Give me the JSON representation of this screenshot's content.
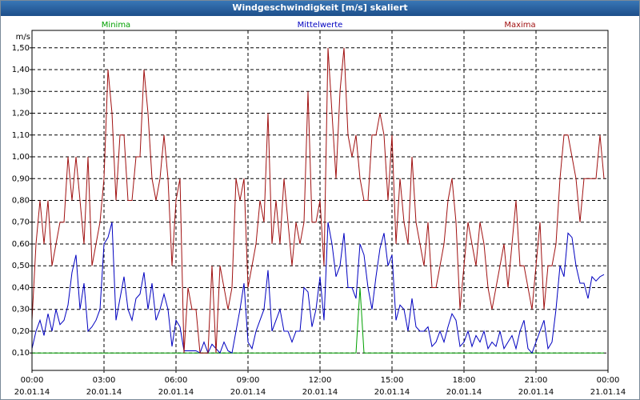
{
  "chart_data": {
    "type": "line",
    "title": "Windgeschwindigkeit [m/s] skaliert",
    "y_unit": "m/s",
    "x": [
      0,
      10,
      20,
      30,
      40,
      50,
      60,
      70,
      80,
      90,
      100,
      110,
      120,
      130,
      140,
      150,
      160,
      170,
      180,
      190,
      200,
      210,
      220,
      230,
      240,
      250,
      260,
      270,
      280,
      290,
      300,
      310,
      320,
      330,
      340,
      350,
      360,
      370,
      380,
      390,
      400,
      410,
      420,
      430,
      440,
      450,
      460,
      470,
      480,
      490,
      500,
      510,
      520,
      530,
      540,
      550,
      560,
      570,
      580,
      590,
      600,
      610,
      620,
      630,
      640,
      650,
      660,
      670,
      680,
      690,
      700,
      710,
      720,
      730,
      740,
      750,
      760,
      770,
      780,
      790,
      800,
      810,
      820,
      830,
      840,
      850,
      860,
      870,
      880,
      890,
      900,
      910,
      920,
      930,
      940,
      950,
      960,
      970,
      980,
      990,
      1000,
      1010,
      1020,
      1030,
      1040,
      1050,
      1060,
      1070,
      1080,
      1090,
      1100,
      1110,
      1120,
      1130,
      1140,
      1150,
      1160,
      1170,
      1180,
      1190,
      1200,
      1210,
      1220,
      1230,
      1240,
      1250,
      1260,
      1270,
      1280,
      1290,
      1300,
      1310,
      1320,
      1330,
      1340,
      1350,
      1360,
      1370,
      1380,
      1390,
      1400,
      1410,
      1420,
      1430
    ],
    "series": [
      {
        "name": "Minima",
        "color": "#00a000",
        "values": [
          0.1,
          0.1,
          0.1,
          0.1,
          0.1,
          0.1,
          0.1,
          0.1,
          0.1,
          0.1,
          0.1,
          0.1,
          0.1,
          0.1,
          0.1,
          0.1,
          0.1,
          0.1,
          0.1,
          0.1,
          0.1,
          0.1,
          0.1,
          0.1,
          0.1,
          0.1,
          0.1,
          0.1,
          0.1,
          0.1,
          0.1,
          0.1,
          0.1,
          0.1,
          0.1,
          0.1,
          0.1,
          0.1,
          0.1,
          0.1,
          0.1,
          0.1,
          0.1,
          0.1,
          0.1,
          0.1,
          0.1,
          0.1,
          0.1,
          0.1,
          0.1,
          0.1,
          0.1,
          0.1,
          0.1,
          0.1,
          0.1,
          0.1,
          0.1,
          0.1,
          0.1,
          0.1,
          0.1,
          0.1,
          0.1,
          0.1,
          0.1,
          0.1,
          0.1,
          0.1,
          0.1,
          0.1,
          0.1,
          0.1,
          0.1,
          0.1,
          0.1,
          0.1,
          0.1,
          0.1,
          0.1,
          0.1,
          0.4,
          0.1,
          0.1,
          0.1,
          0.1,
          0.1,
          0.1,
          0.1,
          0.1,
          0.1,
          0.1,
          0.1,
          0.1,
          0.1,
          0.1,
          0.1,
          0.1,
          0.1,
          0.1,
          0.1,
          0.1,
          0.1,
          0.1,
          0.1,
          0.1,
          0.1,
          0.1,
          0.1,
          0.1,
          0.1,
          0.1,
          0.1,
          0.1,
          0.1,
          0.1,
          0.1,
          0.1,
          0.1,
          0.1,
          0.1,
          0.1,
          0.1,
          0.1,
          0.1,
          0.1,
          0.1,
          0.1,
          0.1,
          0.1,
          0.1,
          0.1,
          0.1,
          0.1,
          0.1,
          0.1,
          0.1,
          0.1,
          0.1,
          0.1,
          0.1,
          0.1,
          0.1
        ]
      },
      {
        "name": "Mittelwerte",
        "color": "#0000c0",
        "values": [
          0.12,
          0.2,
          0.25,
          0.18,
          0.28,
          0.2,
          0.3,
          0.23,
          0.25,
          0.32,
          0.47,
          0.55,
          0.3,
          0.42,
          0.2,
          0.22,
          0.25,
          0.3,
          0.6,
          0.63,
          0.7,
          0.25,
          0.35,
          0.45,
          0.3,
          0.25,
          0.35,
          0.37,
          0.47,
          0.3,
          0.42,
          0.25,
          0.3,
          0.37,
          0.3,
          0.13,
          0.25,
          0.22,
          0.11,
          0.11,
          0.11,
          0.11,
          0.1,
          0.15,
          0.1,
          0.14,
          0.12,
          0.1,
          0.15,
          0.11,
          0.1,
          0.2,
          0.3,
          0.42,
          0.15,
          0.12,
          0.2,
          0.25,
          0.3,
          0.48,
          0.2,
          0.25,
          0.3,
          0.2,
          0.2,
          0.15,
          0.2,
          0.2,
          0.4,
          0.38,
          0.22,
          0.3,
          0.45,
          0.25,
          0.7,
          0.6,
          0.45,
          0.5,
          0.65,
          0.4,
          0.4,
          0.35,
          0.6,
          0.55,
          0.4,
          0.3,
          0.45,
          0.58,
          0.65,
          0.5,
          0.55,
          0.25,
          0.32,
          0.3,
          0.2,
          0.35,
          0.22,
          0.2,
          0.2,
          0.22,
          0.13,
          0.15,
          0.2,
          0.15,
          0.22,
          0.28,
          0.25,
          0.13,
          0.15,
          0.2,
          0.13,
          0.18,
          0.15,
          0.2,
          0.12,
          0.15,
          0.13,
          0.2,
          0.12,
          0.15,
          0.18,
          0.12,
          0.2,
          0.25,
          0.12,
          0.1,
          0.15,
          0.2,
          0.25,
          0.12,
          0.15,
          0.3,
          0.5,
          0.45,
          0.65,
          0.63,
          0.5,
          0.42,
          0.42,
          0.35,
          0.45,
          0.43,
          0.45,
          0.46
        ]
      },
      {
        "name": "Maxima",
        "color": "#a01010",
        "values": [
          0.25,
          0.6,
          0.8,
          0.6,
          0.8,
          0.5,
          0.6,
          0.7,
          0.7,
          1.0,
          0.8,
          1.0,
          0.8,
          0.6,
          1.0,
          0.5,
          0.6,
          0.7,
          0.9,
          1.4,
          1.2,
          0.8,
          1.1,
          1.1,
          0.8,
          0.8,
          1.0,
          1.0,
          1.4,
          1.2,
          0.9,
          0.8,
          0.9,
          1.1,
          0.9,
          0.5,
          0.8,
          0.9,
          0.1,
          0.4,
          0.3,
          0.3,
          0.1,
          0.1,
          0.1,
          0.5,
          0.1,
          0.5,
          0.4,
          0.3,
          0.4,
          0.9,
          0.8,
          0.9,
          0.4,
          0.5,
          0.6,
          0.8,
          0.7,
          1.2,
          0.6,
          0.8,
          0.6,
          0.9,
          0.7,
          0.5,
          0.7,
          0.6,
          0.7,
          1.3,
          0.7,
          0.7,
          0.8,
          0.5,
          1.5,
          1.2,
          0.9,
          1.3,
          1.5,
          1.1,
          1.0,
          1.1,
          0.9,
          0.8,
          0.8,
          1.1,
          1.1,
          1.2,
          1.1,
          0.8,
          1.1,
          0.6,
          0.9,
          0.7,
          0.6,
          1.0,
          0.7,
          0.6,
          0.5,
          0.7,
          0.4,
          0.4,
          0.5,
          0.6,
          0.8,
          0.9,
          0.7,
          0.3,
          0.5,
          0.7,
          0.6,
          0.5,
          0.7,
          0.6,
          0.4,
          0.3,
          0.4,
          0.5,
          0.6,
          0.4,
          0.6,
          0.8,
          0.5,
          0.5,
          0.4,
          0.3,
          0.5,
          0.7,
          0.3,
          0.5,
          0.5,
          0.6,
          0.9,
          1.1,
          1.1,
          1.0,
          0.9,
          0.7,
          0.9,
          0.9,
          0.9,
          0.9,
          1.1,
          0.9
        ]
      }
    ],
    "xlim": [
      0,
      1440
    ],
    "xticks": [
      {
        "value": 0,
        "label": "00:00",
        "date": "20.01.14"
      },
      {
        "value": 180,
        "label": "03:00",
        "date": "20.01.14"
      },
      {
        "value": 360,
        "label": "06:00",
        "date": "20.01.14"
      },
      {
        "value": 540,
        "label": "09:00",
        "date": "20.01.14"
      },
      {
        "value": 720,
        "label": "12:00",
        "date": "20.01.14"
      },
      {
        "value": 900,
        "label": "15:00",
        "date": "20.01.14"
      },
      {
        "value": 1080,
        "label": "18:00",
        "date": "20.01.14"
      },
      {
        "value": 1260,
        "label": "21:00",
        "date": "20.01.14"
      },
      {
        "value": 1440,
        "label": "00:00",
        "date": "21.01.14"
      }
    ],
    "ylim": [
      0.02,
      1.58
    ],
    "yticks": [
      {
        "value": 0.1,
        "label": "0,10"
      },
      {
        "value": 0.2,
        "label": "0,20"
      },
      {
        "value": 0.3,
        "label": "0,30"
      },
      {
        "value": 0.4,
        "label": "0,40"
      },
      {
        "value": 0.5,
        "label": "0,50"
      },
      {
        "value": 0.6,
        "label": "0,60"
      },
      {
        "value": 0.7,
        "label": "0,70"
      },
      {
        "value": 0.8,
        "label": "0,80"
      },
      {
        "value": 0.9,
        "label": "0,90"
      },
      {
        "value": 1.0,
        "label": "1,00"
      },
      {
        "value": 1.1,
        "label": "1,10"
      },
      {
        "value": 1.2,
        "label": "1,20"
      },
      {
        "value": 1.3,
        "label": "1,30"
      },
      {
        "value": 1.4,
        "label": "1,40"
      },
      {
        "value": 1.5,
        "label": "1,50"
      }
    ],
    "grid": true
  }
}
